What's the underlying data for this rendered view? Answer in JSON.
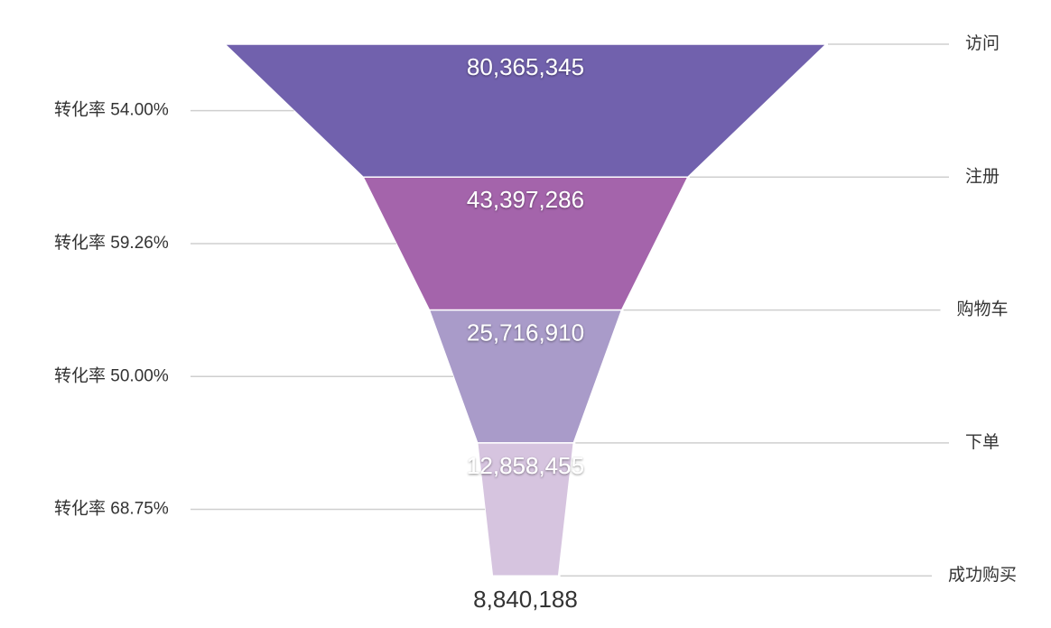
{
  "chart_data": {
    "type": "funnel",
    "categories": [
      "访问",
      "注册",
      "购物车",
      "下单",
      "成功购买"
    ],
    "values": [
      80365345,
      43397286,
      25716910,
      12858455,
      8840188
    ],
    "value_labels": [
      "80,365,345",
      "43,397,286",
      "25,716,910",
      "12,858,455",
      "8,840,188"
    ],
    "colors": [
      "#7161ad",
      "#a464ab",
      "#a99bc9",
      "#d6c4df"
    ],
    "conversion_rates": [
      54.0,
      59.26,
      50.0,
      68.75
    ],
    "conversion_labels": [
      "转化率 54.00%",
      "转化率 59.26%",
      "转化率 50.00%",
      "转化率 68.75%"
    ]
  }
}
